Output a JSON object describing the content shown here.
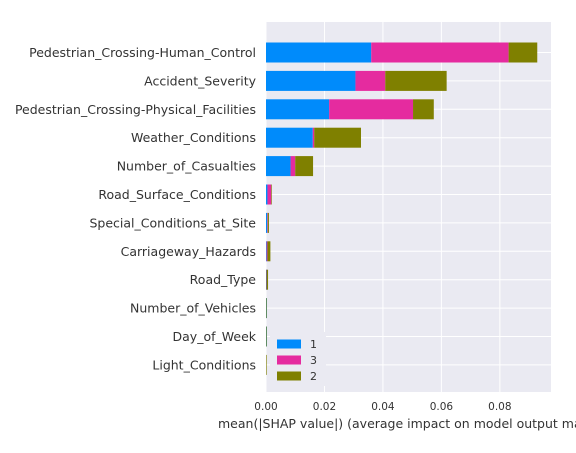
{
  "chart_data": {
    "type": "bar",
    "orientation": "horizontal",
    "stacked": true,
    "title": "",
    "xlabel": "mean(|SHAP value|) (average impact on model output magnitu",
    "ylabel": "",
    "xlim": [
      0,
      0.0975
    ],
    "xticks": [
      0.0,
      0.02,
      0.04,
      0.06,
      0.08
    ],
    "xtick_labels": [
      "0.00",
      "0.02",
      "0.04",
      "0.06",
      "0.08"
    ],
    "grid": true,
    "legend_position": "lower-left",
    "categories": [
      "Pedestrian_Crossing-Human_Control",
      "Accident_Severity",
      "Pedestrian_Crossing-Physical_Facilities",
      "Weather_Conditions",
      "Number_of_Casualties",
      "Road_Surface_Conditions",
      "Special_Conditions_at_Site",
      "Carriageway_Hazards",
      "Road_Type",
      "Number_of_Vehicles",
      "Day_of_Week",
      "Light_Conditions"
    ],
    "series": [
      {
        "name": "1",
        "color": "#008bfb",
        "values": [
          0.036,
          0.0306,
          0.0216,
          0.016,
          0.0084,
          0.0005,
          0.0004,
          0.0002,
          0.0001,
          0.0001,
          0.0001,
          0.0
        ]
      },
      {
        "name": "3",
        "color": "#e52b9f",
        "values": [
          0.047,
          0.0102,
          0.0287,
          0.0005,
          0.0016,
          0.0013,
          0.0002,
          0.0003,
          0.0001,
          0.0,
          0.0,
          0.0
        ]
      },
      {
        "name": "2",
        "color": "#7f8000",
        "values": [
          0.0098,
          0.021,
          0.0071,
          0.016,
          0.0061,
          0.0002,
          0.0004,
          0.001,
          0.0005,
          0.0002,
          0.0001,
          0.0001
        ]
      }
    ]
  }
}
